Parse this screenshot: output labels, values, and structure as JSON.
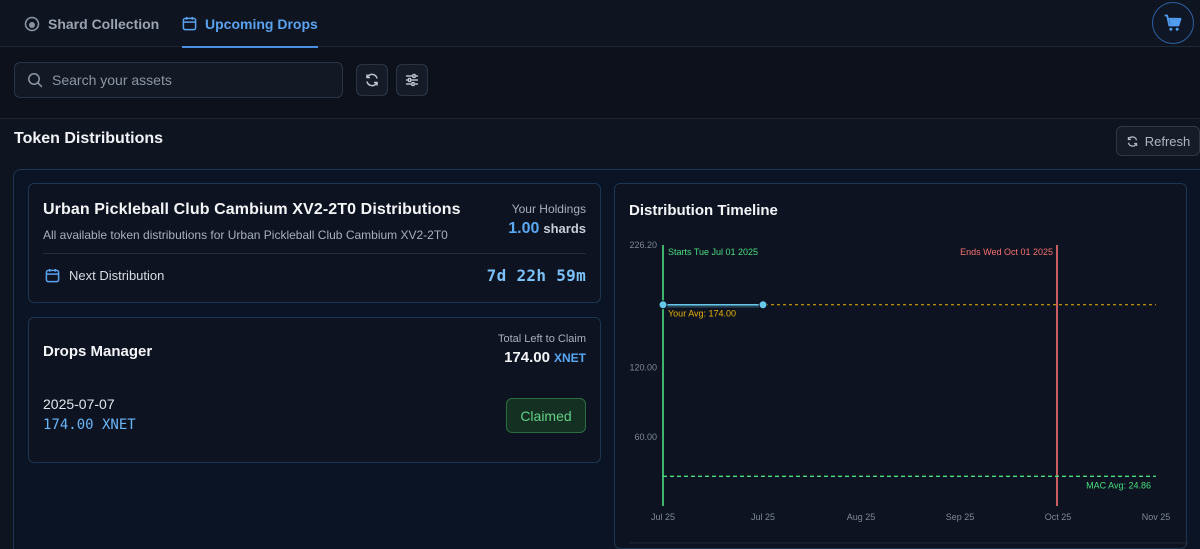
{
  "tabs": [
    {
      "label": "Shard Collection",
      "icon": "shard-icon",
      "active": false
    },
    {
      "label": "Upcoming Drops",
      "icon": "calendar-icon",
      "active": true
    }
  ],
  "cart": {
    "icon": "cart-icon"
  },
  "search": {
    "placeholder": "Search your assets",
    "value": ""
  },
  "toolbar": {
    "reload_icon": "reload-icon",
    "filter_icon": "filter-icon"
  },
  "section": {
    "title": "Token Distributions",
    "refresh_label": "Refresh"
  },
  "collection": {
    "title": "Urban Pickleball Club Cambium XV2-2T0 Distributions",
    "subtitle": "All available token distributions for Urban Pickleball Club Cambium XV2-2T0",
    "holdings_label": "Your Holdings",
    "holdings_value": "1.00",
    "holdings_unit": "shards",
    "next_label": "Next Distribution",
    "countdown": "7d 22h 59m"
  },
  "drops": {
    "title": "Drops Manager",
    "total_label": "Total Left to Claim",
    "total_value": "174.00",
    "total_token": "XNET",
    "items": [
      {
        "date": "2025-07-07",
        "amount": "174.00 XNET",
        "status": "Claimed"
      }
    ]
  },
  "timeline": {
    "title": "Distribution Timeline",
    "chart_data": {
      "type": "line",
      "y_ticks": [
        "226.20",
        "120.00",
        "60.00"
      ],
      "ylim": [
        0,
        226.2
      ],
      "x_ticks": [
        "Jul 25",
        "Jul 25",
        "Aug 25",
        "Sep 25",
        "Oct 25",
        "Nov 25"
      ],
      "start_label": "Starts Tue Jul 01 2025",
      "end_label": "Ends Wed Oct 01 2025",
      "your_avg_label": "Your Avg: 174.00",
      "your_avg": 174.0,
      "mac_avg_label": "MAC Avg: 24.86",
      "mac_avg": 24.86,
      "series": [
        {
          "values": [
            174.0,
            174.0
          ]
        }
      ],
      "colors": {
        "start": "#4ade80",
        "end": "#f87171",
        "avg": "#eab308",
        "mac": "#4ade80",
        "series": "#67c7e8"
      }
    }
  }
}
